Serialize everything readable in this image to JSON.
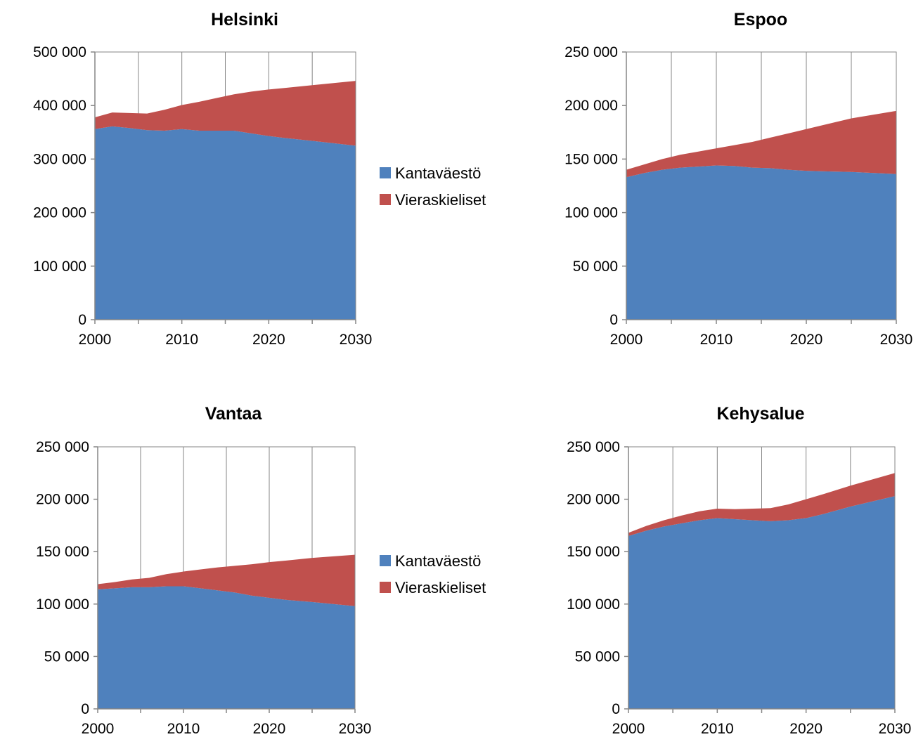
{
  "colors": {
    "Kantaväestö": "#4f81bd",
    "Vieraskieliset": "#c0504d"
  },
  "legend": [
    "Kantaväestö",
    "Vieraskieliset"
  ],
  "chart_data": [
    {
      "type": "area",
      "stacked": true,
      "title": "Helsinki",
      "xlabel": "",
      "ylabel": "",
      "xlim": [
        2000,
        2030
      ],
      "ylim": [
        0,
        500000
      ],
      "xticks": [
        "2000",
        "2010",
        "2020",
        "2030"
      ],
      "yticks": [
        "0",
        "100 000",
        "200 000",
        "300 000",
        "400 000",
        "500 000"
      ],
      "grid": true,
      "legend": "right",
      "x": [
        2000,
        2002,
        2004,
        2006,
        2008,
        2010,
        2012,
        2014,
        2016,
        2018,
        2020,
        2022,
        2025,
        2030
      ],
      "series": [
        {
          "name": "Kantaväestö",
          "values": [
            356000,
            361000,
            358000,
            354000,
            353000,
            356000,
            353000,
            353000,
            353000,
            348000,
            343000,
            339000,
            334000,
            325000
          ]
        },
        {
          "name": "Vieraskieliset",
          "values": [
            22000,
            26000,
            28000,
            31000,
            39000,
            45000,
            54000,
            61000,
            68000,
            78000,
            87000,
            94000,
            104000,
            121000
          ]
        }
      ]
    },
    {
      "type": "area",
      "stacked": true,
      "title": "Espoo",
      "xlabel": "",
      "ylabel": "",
      "xlim": [
        2000,
        2030
      ],
      "ylim": [
        0,
        250000
      ],
      "xticks": [
        "2000",
        "2010",
        "2020",
        "2030"
      ],
      "yticks": [
        "0",
        "50 000",
        "100 000",
        "150 000",
        "200 000",
        "250 000"
      ],
      "grid": true,
      "legend": "none",
      "x": [
        2000,
        2002,
        2004,
        2006,
        2008,
        2010,
        2012,
        2014,
        2016,
        2018,
        2020,
        2022,
        2025,
        2030
      ],
      "series": [
        {
          "name": "Kantaväestö",
          "values": [
            133000,
            137000,
            140000,
            142000,
            143000,
            144000,
            143500,
            142000,
            141500,
            140000,
            139000,
            138500,
            138000,
            136000
          ]
        },
        {
          "name": "Vieraskieliset",
          "values": [
            7000,
            8000,
            10000,
            12000,
            14000,
            16000,
            19500,
            24000,
            28500,
            34000,
            39000,
            43500,
            50000,
            59000
          ]
        }
      ]
    },
    {
      "type": "area",
      "stacked": true,
      "title": "Vantaa",
      "xlabel": "",
      "ylabel": "",
      "xlim": [
        2000,
        2030
      ],
      "ylim": [
        0,
        250000
      ],
      "xticks": [
        "2000",
        "2010",
        "2020",
        "2030"
      ],
      "yticks": [
        "0",
        "50 000",
        "100 000",
        "150 000",
        "200 000",
        "250 000"
      ],
      "grid": true,
      "legend": "right",
      "x": [
        2000,
        2002,
        2004,
        2006,
        2008,
        2010,
        2012,
        2014,
        2016,
        2018,
        2020,
        2022,
        2025,
        2030
      ],
      "series": [
        {
          "name": "Kantaväestö",
          "values": [
            114000,
            115000,
            116000,
            116000,
            117000,
            117000,
            115000,
            113000,
            111000,
            108000,
            106000,
            104000,
            102000,
            98000
          ]
        },
        {
          "name": "Vieraskieliset",
          "values": [
            5000,
            6000,
            7500,
            9000,
            11500,
            14000,
            18000,
            22000,
            25500,
            30000,
            34000,
            37500,
            42000,
            49000
          ]
        }
      ]
    },
    {
      "type": "area",
      "stacked": true,
      "title": "Kehysalue",
      "xlabel": "",
      "ylabel": "",
      "xlim": [
        2000,
        2030
      ],
      "ylim": [
        0,
        250000
      ],
      "xticks": [
        "2000",
        "2010",
        "2020",
        "2030"
      ],
      "yticks": [
        "0",
        "50 000",
        "100 000",
        "150 000",
        "200 000",
        "250 000"
      ],
      "grid": true,
      "legend": "none",
      "x": [
        2000,
        2002,
        2004,
        2006,
        2008,
        2010,
        2012,
        2014,
        2016,
        2018,
        2020,
        2022,
        2025,
        2030
      ],
      "series": [
        {
          "name": "Kantaväestö",
          "values": [
            165000,
            170000,
            174000,
            177000,
            180000,
            182000,
            181000,
            180000,
            179000,
            180000,
            182000,
            186000,
            193000,
            203000
          ]
        },
        {
          "name": "Vieraskieliset",
          "values": [
            3000,
            4500,
            6000,
            7500,
            8500,
            9000,
            9500,
            11000,
            12500,
            15000,
            18000,
            19000,
            20000,
            22000
          ]
        }
      ]
    }
  ]
}
